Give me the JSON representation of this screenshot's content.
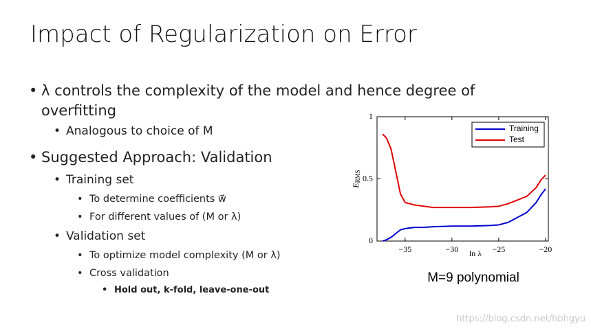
{
  "title": "Impact of Regularization on Error",
  "bullets": [
    {
      "level": 1,
      "text": "λ controls the complexity of the model and hence degree of overfitting"
    },
    {
      "level": 2,
      "text": "Analogous to choice of M"
    },
    {
      "level": 1,
      "text": "Suggested Approach: Validation"
    },
    {
      "level": 2,
      "text": "Training set"
    },
    {
      "level": 3,
      "text": "To determine coefficients w⃗"
    },
    {
      "level": 3,
      "text": "For different values of (M or λ)"
    },
    {
      "level": 2,
      "text": "Validation set"
    },
    {
      "level": 3,
      "text": "To optimize model complexity (M or λ)"
    },
    {
      "level": 3,
      "text": "Cross validation"
    },
    {
      "level": 4,
      "text": "Hold out, k-fold, leave-one-out"
    }
  ],
  "chart_data": {
    "type": "line",
    "xlabel": "ln λ",
    "ylabel": {
      "main": "E",
      "sub": "RMS"
    },
    "caption": "M=9 polynomial",
    "x": [
      -37.4,
      -37,
      -36.5,
      -36,
      -35.5,
      -35,
      -34,
      -33,
      -32,
      -30,
      -28,
      -26,
      -25,
      -24,
      -23,
      -22,
      -21,
      -20.5,
      -20
    ],
    "series": [
      {
        "name": "Training",
        "color": "#0000cc",
        "values": [
          0.0,
          0.01,
          0.03,
          0.06,
          0.09,
          0.1,
          0.11,
          0.11,
          0.115,
          0.12,
          0.12,
          0.125,
          0.13,
          0.15,
          0.19,
          0.23,
          0.31,
          0.37,
          0.42
        ]
      },
      {
        "name": "Test",
        "color": "#e00000",
        "values": [
          0.86,
          0.83,
          0.74,
          0.56,
          0.38,
          0.31,
          0.29,
          0.28,
          0.27,
          0.27,
          0.27,
          0.275,
          0.28,
          0.3,
          0.33,
          0.36,
          0.43,
          0.49,
          0.53
        ]
      }
    ],
    "xlim": [
      -38,
      -19.7
    ],
    "ylim": [
      0,
      1
    ],
    "xticks": [
      {
        "value": -35,
        "label": "−35"
      },
      {
        "value": -30,
        "label": "−30"
      },
      {
        "value": -25,
        "label": "−25"
      },
      {
        "value": -20,
        "label": "−20"
      }
    ],
    "yticks": [
      0,
      0.5,
      1
    ],
    "legend": "upper right"
  },
  "watermark": "https://blog.csdn.net/hbhgyu"
}
